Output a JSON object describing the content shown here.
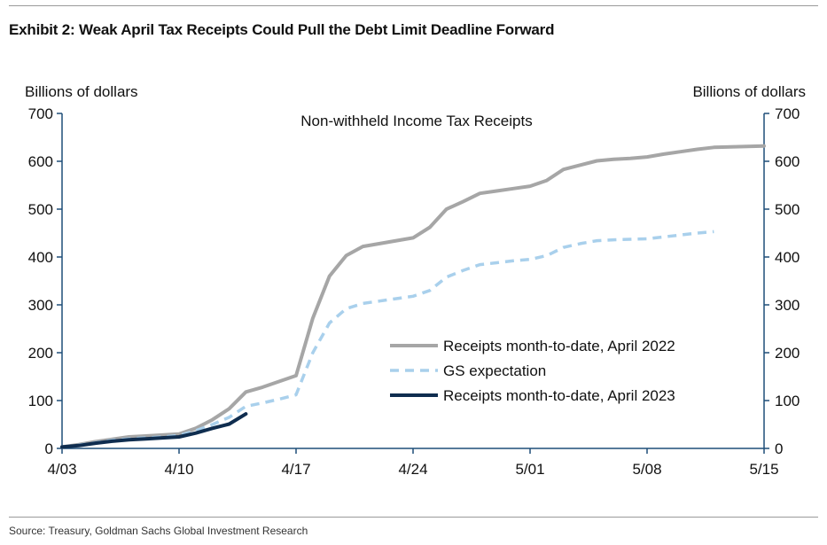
{
  "exhibit_title": "Exhibit 2: Weak April Tax Receipts Could Pull the Debt Limit Deadline Forward",
  "source": "Source: Treasury, Goldman Sachs Global Investment Research",
  "colors": {
    "april_2022": "#a6a6a6",
    "gs_expectation": "#a9d0ec",
    "april_2023": "#0f2d4f",
    "axis": "#1f4e79"
  },
  "chart_data": {
    "type": "line",
    "title": "Non-withheld Income Tax Receipts",
    "ylabel_left": "Billions of dollars",
    "ylabel_right": "Billions of dollars",
    "ylim": [
      0,
      700
    ],
    "yticks": [
      0,
      100,
      200,
      300,
      400,
      500,
      600,
      700
    ],
    "y_tick_labels": [
      "0",
      "100",
      "200",
      "300",
      "400",
      "500",
      "600",
      "700"
    ],
    "xlim_days": [
      0,
      42
    ],
    "x_tick_days": [
      0,
      7,
      14,
      21,
      28,
      35,
      42
    ],
    "x_tick_labels": [
      "4/03",
      "4/10",
      "4/17",
      "4/24",
      "5/01",
      "5/08",
      "5/15"
    ],
    "legend_position": "center-right",
    "series": [
      {
        "name": "Receipts month-to-date, April 2022",
        "style": "solid",
        "color_key": "april_2022",
        "points": [
          [
            0,
            3
          ],
          [
            1,
            8
          ],
          [
            2,
            14
          ],
          [
            3,
            19
          ],
          [
            4,
            24
          ],
          [
            5,
            26
          ],
          [
            6,
            28
          ],
          [
            7,
            30
          ],
          [
            8,
            42
          ],
          [
            9,
            60
          ],
          [
            10,
            83
          ],
          [
            11,
            118
          ],
          [
            12,
            128
          ],
          [
            13,
            140
          ],
          [
            14,
            152
          ],
          [
            15,
            272
          ],
          [
            16,
            360
          ],
          [
            17,
            403
          ],
          [
            18,
            422
          ],
          [
            19,
            428
          ],
          [
            20,
            434
          ],
          [
            21,
            440
          ],
          [
            22,
            462
          ],
          [
            23,
            500
          ],
          [
            24,
            516
          ],
          [
            25,
            533
          ],
          [
            26,
            538
          ],
          [
            27,
            543
          ],
          [
            28,
            548
          ],
          [
            29,
            560
          ],
          [
            30,
            583
          ],
          [
            31,
            592
          ],
          [
            32,
            601
          ],
          [
            33,
            604
          ],
          [
            34,
            606
          ],
          [
            35,
            609
          ],
          [
            36,
            615
          ],
          [
            37,
            620
          ],
          [
            38,
            625
          ],
          [
            39,
            629
          ],
          [
            40,
            630
          ],
          [
            41,
            631
          ],
          [
            42,
            632
          ]
        ]
      },
      {
        "name": "GS expectation",
        "style": "dashed",
        "color_key": "gs_expectation",
        "points": [
          [
            0,
            3
          ],
          [
            1,
            7
          ],
          [
            2,
            12
          ],
          [
            3,
            17
          ],
          [
            4,
            20
          ],
          [
            5,
            22
          ],
          [
            6,
            24
          ],
          [
            7,
            27
          ],
          [
            8,
            37
          ],
          [
            9,
            50
          ],
          [
            10,
            65
          ],
          [
            11,
            88
          ],
          [
            12,
            95
          ],
          [
            13,
            103
          ],
          [
            14,
            112
          ],
          [
            15,
            200
          ],
          [
            16,
            262
          ],
          [
            17,
            292
          ],
          [
            18,
            303
          ],
          [
            19,
            308
          ],
          [
            20,
            313
          ],
          [
            21,
            318
          ],
          [
            22,
            330
          ],
          [
            23,
            358
          ],
          [
            24,
            372
          ],
          [
            25,
            384
          ],
          [
            26,
            388
          ],
          [
            27,
            392
          ],
          [
            28,
            395
          ],
          [
            29,
            403
          ],
          [
            30,
            420
          ],
          [
            31,
            428
          ],
          [
            32,
            434
          ],
          [
            33,
            436
          ],
          [
            34,
            437
          ],
          [
            35,
            438
          ],
          [
            36,
            442
          ],
          [
            37,
            446
          ],
          [
            38,
            450
          ],
          [
            39,
            453
          ]
        ]
      },
      {
        "name": "Receipts month-to-date, April 2023",
        "style": "solid",
        "color_key": "april_2023",
        "points": [
          [
            0,
            3
          ],
          [
            1,
            6
          ],
          [
            2,
            11
          ],
          [
            3,
            15
          ],
          [
            4,
            18
          ],
          [
            5,
            20
          ],
          [
            6,
            22
          ],
          [
            7,
            24
          ],
          [
            8,
            32
          ],
          [
            9,
            42
          ],
          [
            10,
            51
          ],
          [
            11,
            72
          ]
        ]
      }
    ]
  }
}
